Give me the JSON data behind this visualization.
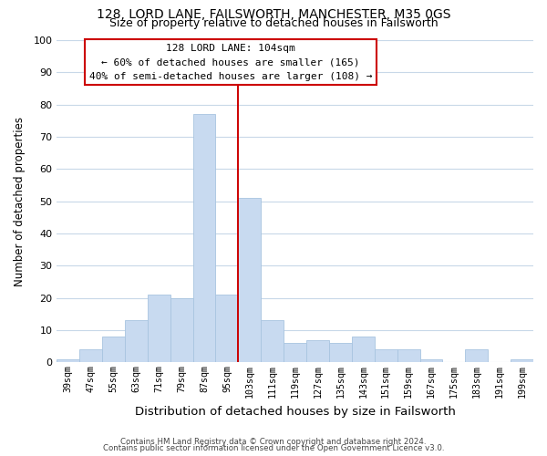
{
  "title1": "128, LORD LANE, FAILSWORTH, MANCHESTER, M35 0GS",
  "title2": "Size of property relative to detached houses in Failsworth",
  "xlabel": "Distribution of detached houses by size in Failsworth",
  "ylabel": "Number of detached properties",
  "bar_color": "#c8daf0",
  "bar_edge_color": "#a8c4e0",
  "bin_labels": [
    "39sqm",
    "47sqm",
    "55sqm",
    "63sqm",
    "71sqm",
    "79sqm",
    "87sqm",
    "95sqm",
    "103sqm",
    "111sqm",
    "119sqm",
    "127sqm",
    "135sqm",
    "143sqm",
    "151sqm",
    "159sqm",
    "167sqm",
    "175sqm",
    "183sqm",
    "191sqm",
    "199sqm"
  ],
  "bar_heights": [
    1,
    4,
    8,
    13,
    21,
    20,
    77,
    21,
    51,
    13,
    6,
    7,
    6,
    8,
    4,
    4,
    1,
    0,
    4,
    0,
    1
  ],
  "vline_x": 8,
  "vline_color": "#cc0000",
  "annotation_title": "128 LORD LANE: 104sqm",
  "annotation_line1": "← 60% of detached houses are smaller (165)",
  "annotation_line2": "40% of semi-detached houses are larger (108) →",
  "annotation_box_color": "#ffffff",
  "annotation_box_edge_color": "#cc0000",
  "ylim": [
    0,
    100
  ],
  "yticks": [
    0,
    10,
    20,
    30,
    40,
    50,
    60,
    70,
    80,
    90,
    100
  ],
  "footer1": "Contains HM Land Registry data © Crown copyright and database right 2024.",
  "footer2": "Contains public sector information licensed under the Open Government Licence v3.0.",
  "bg_color": "#ffffff",
  "grid_color": "#c8d8e8"
}
